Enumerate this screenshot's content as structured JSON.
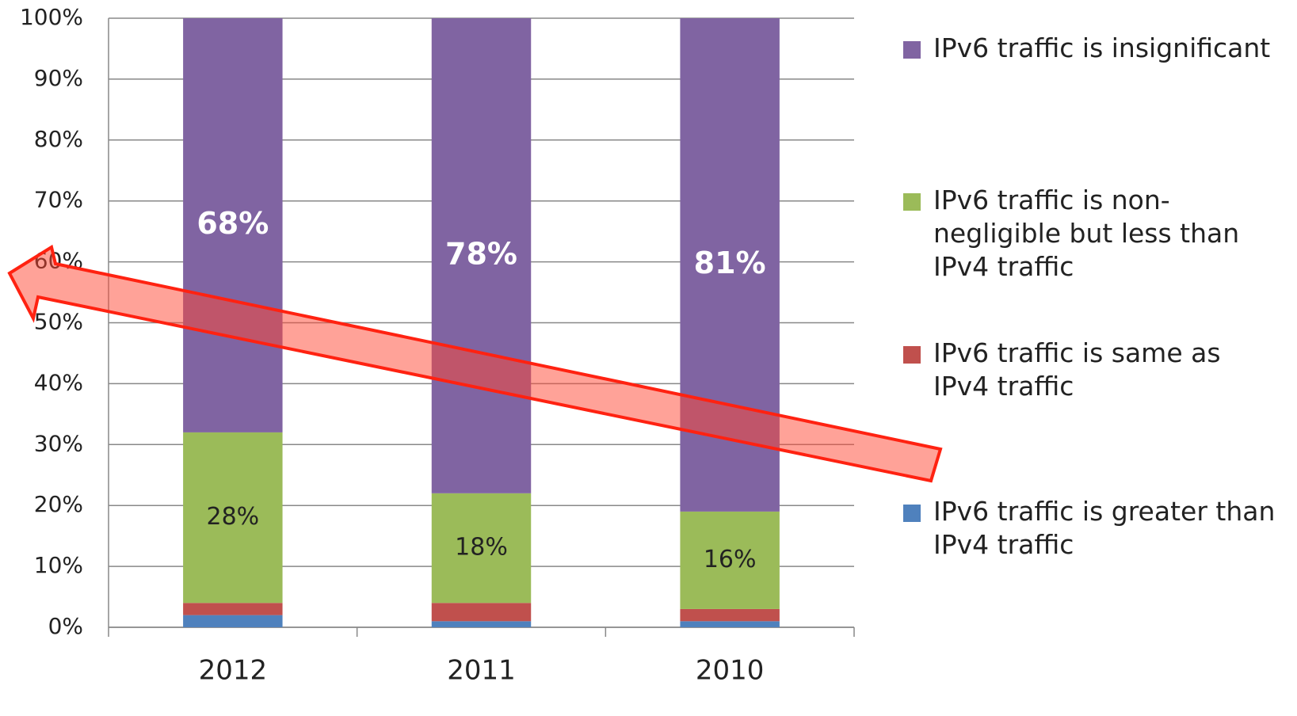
{
  "chart_data": {
    "type": "stacked_bar",
    "categories": [
      "2012",
      "2011",
      "2010"
    ],
    "series": [
      {
        "name": "IPv6 traffic is greater than IPv4 traffic",
        "color": "#4f81bd",
        "values": [
          2,
          1,
          1
        ]
      },
      {
        "name": "IPv6 traffic is same as IPv4 traffic",
        "color": "#c0504d",
        "values": [
          2,
          3,
          2
        ]
      },
      {
        "name": "IPv6 traffic is non-negligible but less than IPv4 traffic",
        "color": "#9bbb59",
        "values": [
          28,
          18,
          16
        ],
        "value_labels": [
          "28%",
          "18%",
          "16%"
        ]
      },
      {
        "name": "IPv6 traffic is insignificant",
        "color": "#8064a2",
        "values": [
          68,
          78,
          81
        ],
        "value_labels": [
          "68%",
          "78%",
          "81%"
        ]
      }
    ],
    "ylim": [
      0,
      100
    ],
    "yticks": [
      {
        "value": 0,
        "label": "0%"
      },
      {
        "value": 10,
        "label": "10%"
      },
      {
        "value": 20,
        "label": "20%"
      },
      {
        "value": 30,
        "label": "30%"
      },
      {
        "value": 40,
        "label": "40%"
      },
      {
        "value": 50,
        "label": "50%"
      },
      {
        "value": 60,
        "label": "60%"
      },
      {
        "value": 70,
        "label": "70%"
      },
      {
        "value": 80,
        "label": "80%"
      },
      {
        "value": 90,
        "label": "90%"
      },
      {
        "value": 100,
        "label": "100%"
      }
    ],
    "grid": true,
    "legend": "right"
  }
}
